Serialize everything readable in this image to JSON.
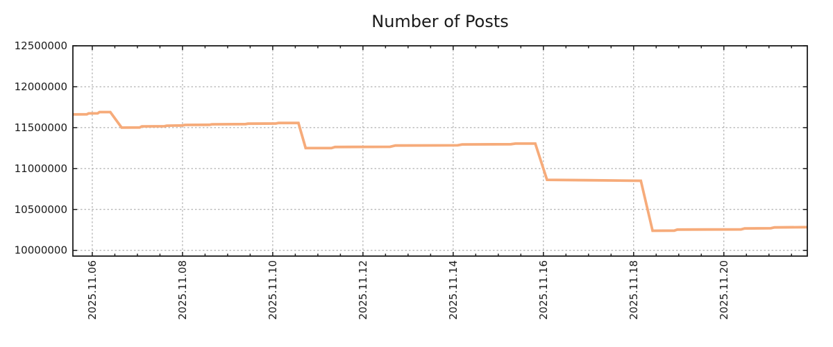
{
  "chart_data": {
    "type": "line",
    "title": "Number of Posts",
    "x_unit": "date (day of November 2025, fractional)",
    "x": [
      5.57,
      5.88,
      5.92,
      6.12,
      6.16,
      6.4,
      6.65,
      7.05,
      7.1,
      7.6,
      7.65,
      8.0,
      8.05,
      8.6,
      8.65,
      9.4,
      9.45,
      10.07,
      10.13,
      10.57,
      10.73,
      11.3,
      11.38,
      12.6,
      12.72,
      14.1,
      14.2,
      15.28,
      15.38,
      15.82,
      16.08,
      17.0,
      18.16,
      18.42,
      18.9,
      18.97,
      20.38,
      20.46,
      21.04,
      21.12,
      21.85
    ],
    "series": [
      {
        "name": "Number of Posts",
        "values": [
          11661000,
          11663000,
          11674000,
          11675000,
          11690000,
          11690000,
          11500000,
          11502000,
          11515000,
          11517000,
          11524000,
          11526000,
          11533000,
          11535000,
          11541000,
          11543000,
          11548000,
          11550000,
          11557000,
          11557000,
          11251000,
          11250000,
          11263000,
          11266000,
          11281000,
          11284000,
          11295000,
          11297000,
          11305000,
          11305000,
          10862000,
          10857000,
          10850000,
          10240000,
          10241000,
          10254000,
          10256000,
          10268000,
          10270000,
          10280000,
          10284000
        ]
      }
    ],
    "x_ticks": [
      {
        "v": 6,
        "label": "2025.11.06"
      },
      {
        "v": 8,
        "label": "2025.11.08"
      },
      {
        "v": 10,
        "label": "2025.11.10"
      },
      {
        "v": 12,
        "label": "2025.11.12"
      },
      {
        "v": 14,
        "label": "2025.11.14"
      },
      {
        "v": 16,
        "label": "2025.11.16"
      },
      {
        "v": 18,
        "label": "2025.11.18"
      },
      {
        "v": 20,
        "label": "2025.11.20"
      }
    ],
    "x_minor_step": 0.5,
    "y_ticks": [
      {
        "v": 10000000,
        "label": "10000000"
      },
      {
        "v": 10500000,
        "label": "10500000"
      },
      {
        "v": 11000000,
        "label": "11000000"
      },
      {
        "v": 11500000,
        "label": "11500000"
      },
      {
        "v": 12000000,
        "label": "12000000"
      },
      {
        "v": 12500000,
        "label": "12500000"
      }
    ],
    "xlim": [
      5.57,
      21.85
    ],
    "ylim": [
      9930000,
      12500000
    ],
    "grid": true,
    "legend": "none",
    "colors": {
      "line": "#f6ab7a",
      "grid": "#9e9e9e",
      "axis": "#1a1a1a",
      "text": "#1a1a1a",
      "background": "#ffffff"
    }
  }
}
